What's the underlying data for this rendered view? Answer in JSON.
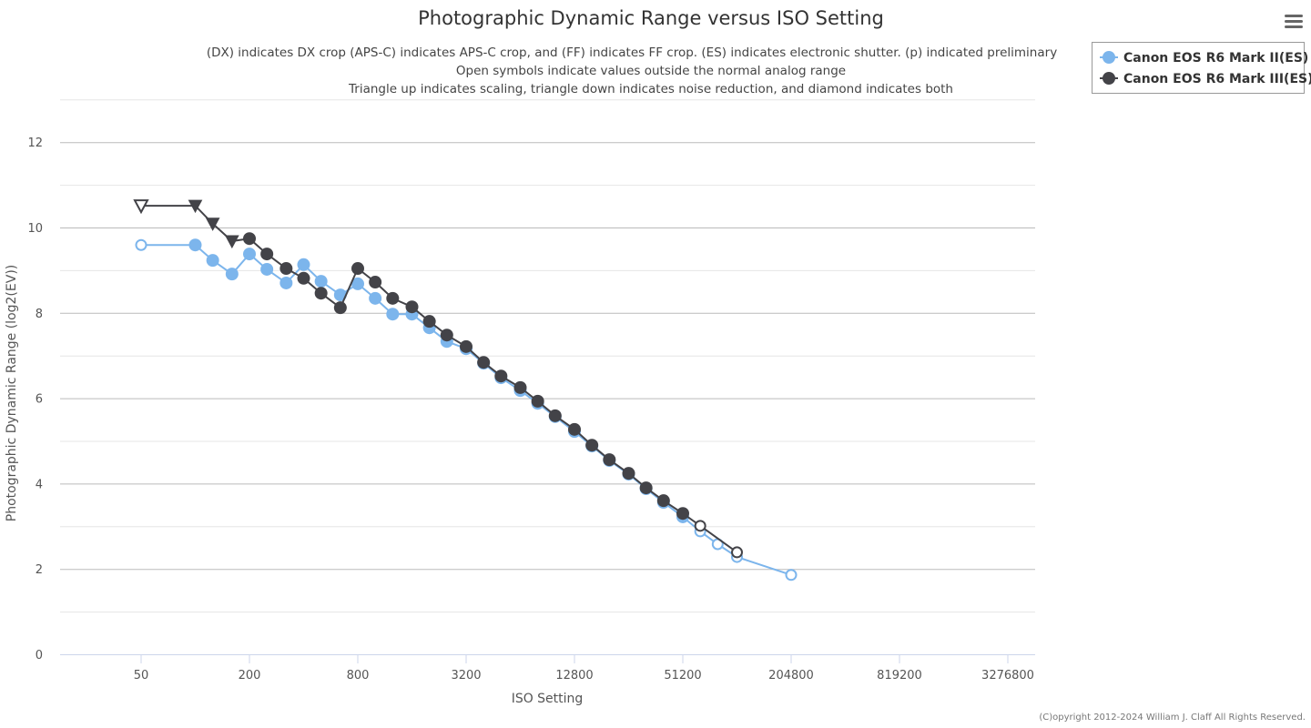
{
  "chart_data": {
    "type": "line",
    "title": "Photographic Dynamic Range versus ISO Setting",
    "subtitles": [
      "(DX) indicates DX crop (APS-C) indicates APS-C crop, and (FF) indicates FF crop. (ES) indicates electronic shutter. (p) indicated preliminary",
      "Open symbols indicate values outside the normal analog range",
      "Triangle up indicates scaling, triangle down indicates noise reduction, and diamond indicates both"
    ],
    "xlabel": "ISO Setting",
    "ylabel": "Photographic Dynamic Range (log2(EV))",
    "x_scale": "log2",
    "x_ticks": [
      "50",
      "200",
      "800",
      "3200",
      "12800",
      "51200",
      "204800",
      "819200",
      "3276800"
    ],
    "x_tick_values": [
      50,
      200,
      800,
      3200,
      12800,
      51200,
      204800,
      819200,
      3276800
    ],
    "y_ticks": [
      "0",
      "2",
      "4",
      "6",
      "8",
      "10",
      "12"
    ],
    "ylim": [
      0,
      13
    ],
    "grid": true,
    "legend_position": "top-right",
    "copyright": "(C)opyright 2012-2024 William J. Claff All Rights Reserved.",
    "series": [
      {
        "name": "Canon EOS R6 Mark II(ES)",
        "color": "#7cb5ec",
        "points": [
          {
            "iso": 50,
            "dr": 9.59,
            "symbol": "open-circle"
          },
          {
            "iso": 100,
            "dr": 9.59,
            "symbol": "circle"
          },
          {
            "iso": 125,
            "dr": 9.23,
            "symbol": "circle"
          },
          {
            "iso": 160,
            "dr": 8.91,
            "symbol": "circle"
          },
          {
            "iso": 200,
            "dr": 9.38,
            "symbol": "circle"
          },
          {
            "iso": 250,
            "dr": 9.02,
            "symbol": "circle"
          },
          {
            "iso": 320,
            "dr": 8.7,
            "symbol": "circle"
          },
          {
            "iso": 400,
            "dr": 9.13,
            "symbol": "circle"
          },
          {
            "iso": 500,
            "dr": 8.74,
            "symbol": "circle"
          },
          {
            "iso": 640,
            "dr": 8.42,
            "symbol": "circle"
          },
          {
            "iso": 800,
            "dr": 8.68,
            "symbol": "circle"
          },
          {
            "iso": 1000,
            "dr": 8.34,
            "symbol": "circle"
          },
          {
            "iso": 1250,
            "dr": 7.97,
            "symbol": "circle"
          },
          {
            "iso": 1600,
            "dr": 7.97,
            "symbol": "circle"
          },
          {
            "iso": 2000,
            "dr": 7.65,
            "symbol": "circle"
          },
          {
            "iso": 2500,
            "dr": 7.33,
            "symbol": "circle"
          },
          {
            "iso": 3200,
            "dr": 7.16,
            "symbol": "circle"
          },
          {
            "iso": 4000,
            "dr": 6.82,
            "symbol": "circle"
          },
          {
            "iso": 5000,
            "dr": 6.48,
            "symbol": "circle"
          },
          {
            "iso": 6400,
            "dr": 6.18,
            "symbol": "circle"
          },
          {
            "iso": 8000,
            "dr": 5.88,
            "symbol": "circle"
          },
          {
            "iso": 10000,
            "dr": 5.57,
            "symbol": "circle"
          },
          {
            "iso": 12800,
            "dr": 5.22,
            "symbol": "circle"
          },
          {
            "iso": 16000,
            "dr": 4.88,
            "symbol": "circle"
          },
          {
            "iso": 20000,
            "dr": 4.54,
            "symbol": "circle"
          },
          {
            "iso": 25600,
            "dr": 4.22,
            "symbol": "circle"
          },
          {
            "iso": 32000,
            "dr": 3.88,
            "symbol": "circle"
          },
          {
            "iso": 40000,
            "dr": 3.56,
            "symbol": "circle"
          },
          {
            "iso": 51200,
            "dr": 3.22,
            "symbol": "circle"
          },
          {
            "iso": 64000,
            "dr": 2.88,
            "symbol": "open-circle"
          },
          {
            "iso": 80000,
            "dr": 2.58,
            "symbol": "open-circle"
          },
          {
            "iso": 102400,
            "dr": 2.28,
            "symbol": "open-circle"
          },
          {
            "iso": 204800,
            "dr": 1.86,
            "symbol": "open-circle"
          }
        ]
      },
      {
        "name": "Canon EOS R6 Mark III(ES)",
        "color": "#434348",
        "points": [
          {
            "iso": 50,
            "dr": 10.51,
            "symbol": "open-triangle-down"
          },
          {
            "iso": 100,
            "dr": 10.51,
            "symbol": "triangle-down"
          },
          {
            "iso": 125,
            "dr": 10.09,
            "symbol": "triangle-down"
          },
          {
            "iso": 160,
            "dr": 9.68,
            "symbol": "triangle-down"
          },
          {
            "iso": 200,
            "dr": 9.74,
            "symbol": "circle"
          },
          {
            "iso": 250,
            "dr": 9.38,
            "symbol": "circle"
          },
          {
            "iso": 320,
            "dr": 9.04,
            "symbol": "circle"
          },
          {
            "iso": 400,
            "dr": 8.81,
            "symbol": "circle"
          },
          {
            "iso": 500,
            "dr": 8.46,
            "symbol": "circle"
          },
          {
            "iso": 640,
            "dr": 8.12,
            "symbol": "circle"
          },
          {
            "iso": 800,
            "dr": 9.04,
            "symbol": "circle"
          },
          {
            "iso": 1000,
            "dr": 8.72,
            "symbol": "circle"
          },
          {
            "iso": 1250,
            "dr": 8.34,
            "symbol": "circle"
          },
          {
            "iso": 1600,
            "dr": 8.14,
            "symbol": "circle"
          },
          {
            "iso": 2000,
            "dr": 7.8,
            "symbol": "circle"
          },
          {
            "iso": 2500,
            "dr": 7.48,
            "symbol": "circle"
          },
          {
            "iso": 3200,
            "dr": 7.21,
            "symbol": "circle"
          },
          {
            "iso": 4000,
            "dr": 6.84,
            "symbol": "circle"
          },
          {
            "iso": 5000,
            "dr": 6.52,
            "symbol": "circle"
          },
          {
            "iso": 6400,
            "dr": 6.25,
            "symbol": "circle"
          },
          {
            "iso": 8000,
            "dr": 5.93,
            "symbol": "circle"
          },
          {
            "iso": 10000,
            "dr": 5.59,
            "symbol": "circle"
          },
          {
            "iso": 12800,
            "dr": 5.27,
            "symbol": "circle"
          },
          {
            "iso": 16000,
            "dr": 4.9,
            "symbol": "circle"
          },
          {
            "iso": 20000,
            "dr": 4.56,
            "symbol": "circle"
          },
          {
            "iso": 25600,
            "dr": 4.24,
            "symbol": "circle"
          },
          {
            "iso": 32000,
            "dr": 3.9,
            "symbol": "circle"
          },
          {
            "iso": 40000,
            "dr": 3.6,
            "symbol": "circle"
          },
          {
            "iso": 51200,
            "dr": 3.3,
            "symbol": "circle"
          },
          {
            "iso": 64000,
            "dr": 3.01,
            "symbol": "open-circle"
          },
          {
            "iso": 102400,
            "dr": 2.39,
            "symbol": "open-circle"
          }
        ]
      }
    ]
  },
  "menu": {
    "icon": "hamburger-menu-icon"
  }
}
